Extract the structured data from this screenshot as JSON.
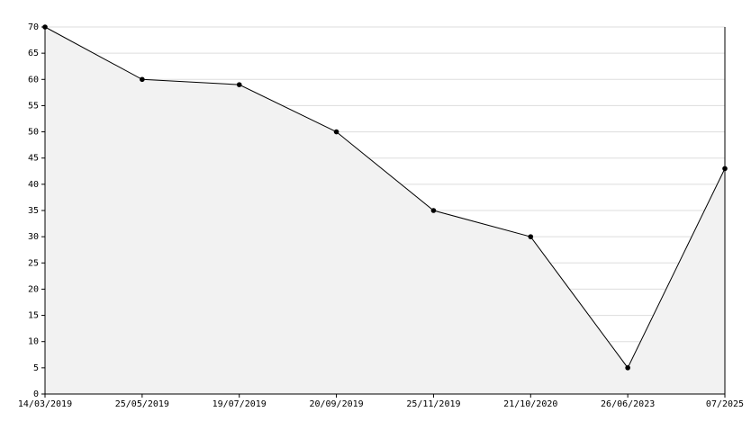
{
  "chart_data": {
    "type": "area",
    "categories": [
      "14/03/2019",
      "25/05/2019",
      "19/07/2019",
      "20/09/2019",
      "25/11/2019",
      "21/10/2020",
      "26/06/2023",
      "07/2025"
    ],
    "values": [
      70,
      60,
      59,
      50,
      35,
      30,
      5,
      43
    ],
    "color": "#000000",
    "fill_color": "#f2f2f2",
    "ylim": [
      0,
      70
    ],
    "yticks": [
      0,
      5,
      10,
      15,
      20,
      25,
      30,
      35,
      40,
      45,
      50,
      55,
      60,
      65,
      70
    ],
    "grid": true
  }
}
